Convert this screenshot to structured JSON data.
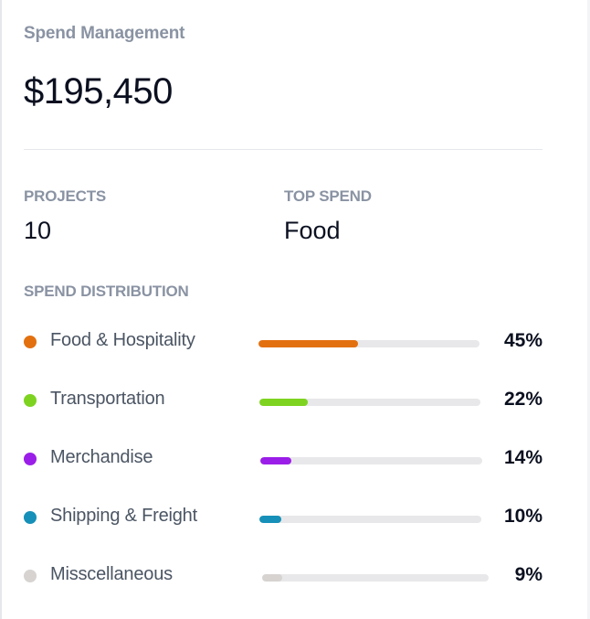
{
  "card": {
    "title": "Spend Management",
    "total": "$195,450"
  },
  "stats": {
    "projects_label": "PROJECTS",
    "projects_value": "10",
    "top_spend_label": "TOP SPEND",
    "top_spend_value": "Food"
  },
  "distribution": {
    "label": "SPEND DISTRIBUTION",
    "items": [
      {
        "label": "Food & Hospitality",
        "percent": "45%",
        "value": 45,
        "color": "#e3700f"
      },
      {
        "label": "Transportation",
        "percent": "22%",
        "value": 22,
        "color": "#7ed321"
      },
      {
        "label": "Merchandise",
        "percent": "14%",
        "value": 14,
        "color": "#9b1ee8"
      },
      {
        "label": "Shipping & Freight",
        "percent": "10%",
        "value": 10,
        "color": "#1690b8"
      },
      {
        "label": "Misscellaneous",
        "percent": "9%",
        "value": 9,
        "color": "#d6d3d1"
      }
    ]
  }
}
